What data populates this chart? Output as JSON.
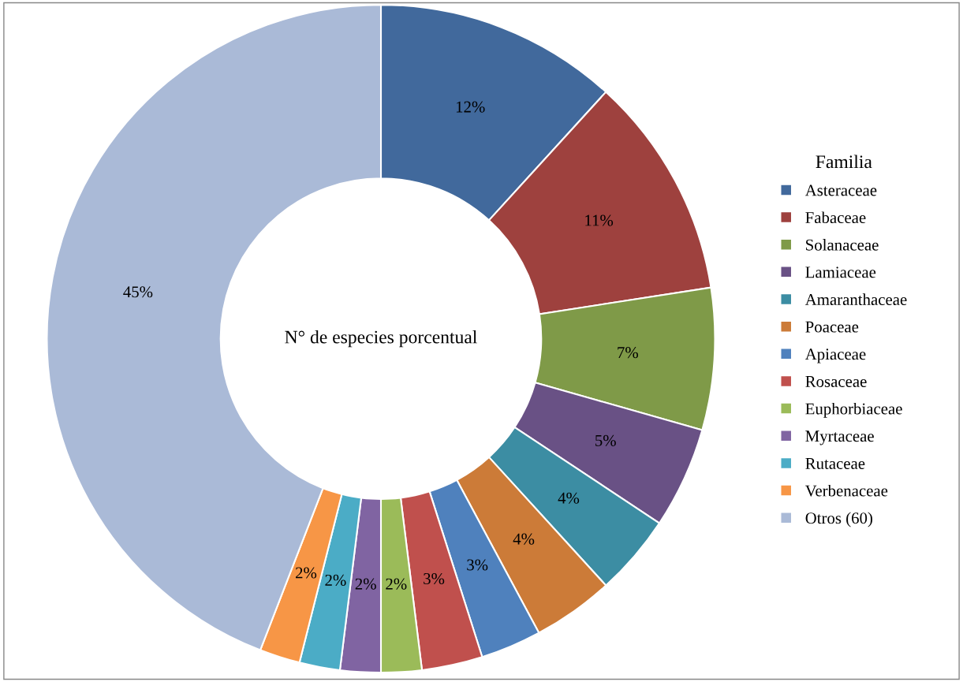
{
  "chart_data": {
    "type": "donut",
    "categories": [
      "Asteraceae",
      "Fabaceae",
      "Solanaceae",
      "Lamiaceae",
      "Amaranthaceae",
      "Poaceae",
      "Apiaceae",
      "Rosaceae",
      "Euphorbiaceae",
      "Myrtaceae",
      "Rutaceae",
      "Verbenaceae",
      "Otros (60)"
    ],
    "values": [
      12,
      11,
      7,
      5,
      4,
      4,
      3,
      3,
      2,
      2,
      2,
      2,
      45
    ],
    "colors": [
      "#41699c",
      "#9e413e",
      "#7f9a48",
      "#695185",
      "#3c8da3",
      "#cc7b38",
      "#4f81bd",
      "#c0504d",
      "#9bbb59",
      "#8064a2",
      "#4bacc6",
      "#f79646",
      "#aabad7"
    ],
    "value_labels": [
      "12%",
      "11%",
      "7%",
      "5%",
      "4%",
      "4%",
      "3%",
      "3%",
      "2%",
      "2%",
      "2%",
      "2%",
      "45%"
    ],
    "legend": "right",
    "legend_title": "Familia",
    "annotations": [
      "N° de especies porcentual"
    ]
  }
}
